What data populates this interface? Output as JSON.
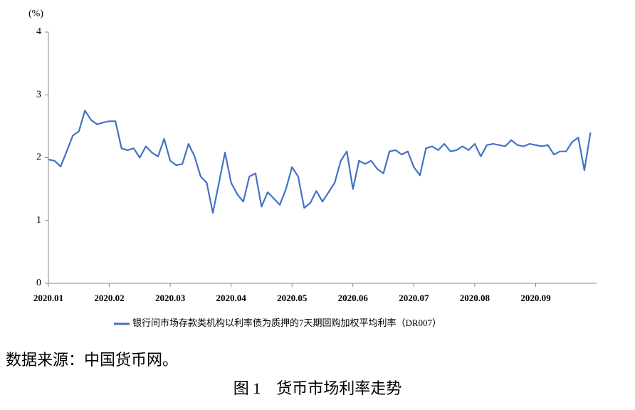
{
  "chart_data": {
    "type": "line",
    "y_unit_label": "(%)",
    "source": "数据来源：中国货币网。",
    "caption": "图 1　货币市场利率走势",
    "categories": [
      "2020.01",
      null,
      null,
      null,
      null,
      null,
      null,
      null,
      null,
      null,
      "2020.02",
      null,
      null,
      null,
      null,
      null,
      null,
      null,
      null,
      null,
      "2020.03",
      null,
      null,
      null,
      null,
      null,
      null,
      null,
      null,
      null,
      "2020.04",
      null,
      null,
      null,
      null,
      null,
      null,
      null,
      null,
      null,
      "2020.05",
      null,
      null,
      null,
      null,
      null,
      null,
      null,
      null,
      null,
      "2020.06",
      null,
      null,
      null,
      null,
      null,
      null,
      null,
      null,
      null,
      "2020.07",
      null,
      null,
      null,
      null,
      null,
      null,
      null,
      null,
      null,
      "2020.08",
      null,
      null,
      null,
      null,
      null,
      null,
      null,
      null,
      null,
      "2020.09",
      null,
      null,
      null,
      null,
      null,
      null,
      null,
      null,
      null
    ],
    "series": [
      {
        "name": "银行间市场存款类机构以利率债为质押的7天期回购加权平均利率（DR007）",
        "color": "#4472c4",
        "values": [
          1.97,
          1.95,
          1.86,
          2.1,
          2.35,
          2.42,
          2.75,
          2.6,
          2.53,
          2.56,
          2.58,
          2.58,
          2.15,
          2.12,
          2.15,
          2.0,
          2.18,
          2.08,
          2.02,
          2.3,
          1.95,
          1.88,
          1.9,
          2.22,
          2.02,
          1.7,
          1.6,
          1.12,
          1.6,
          2.08,
          1.6,
          1.42,
          1.3,
          1.7,
          1.75,
          1.22,
          1.45,
          1.35,
          1.25,
          1.5,
          1.85,
          1.7,
          1.2,
          1.28,
          1.47,
          1.3,
          1.45,
          1.6,
          1.95,
          2.1,
          1.5,
          1.95,
          1.9,
          1.95,
          1.82,
          1.75,
          2.1,
          2.12,
          2.05,
          2.1,
          1.85,
          1.72,
          2.15,
          2.18,
          2.12,
          2.22,
          2.1,
          2.12,
          2.18,
          2.12,
          2.22,
          2.02,
          2.2,
          2.22,
          2.2,
          2.18,
          2.28,
          2.2,
          2.18,
          2.22,
          2.2,
          2.18,
          2.2,
          2.05,
          2.1,
          2.1,
          2.25,
          2.32,
          1.8,
          2.4
        ]
      }
    ],
    "ylim": [
      0,
      4
    ],
    "yticks": [
      0,
      1,
      2,
      3,
      4
    ],
    "grid": false
  }
}
